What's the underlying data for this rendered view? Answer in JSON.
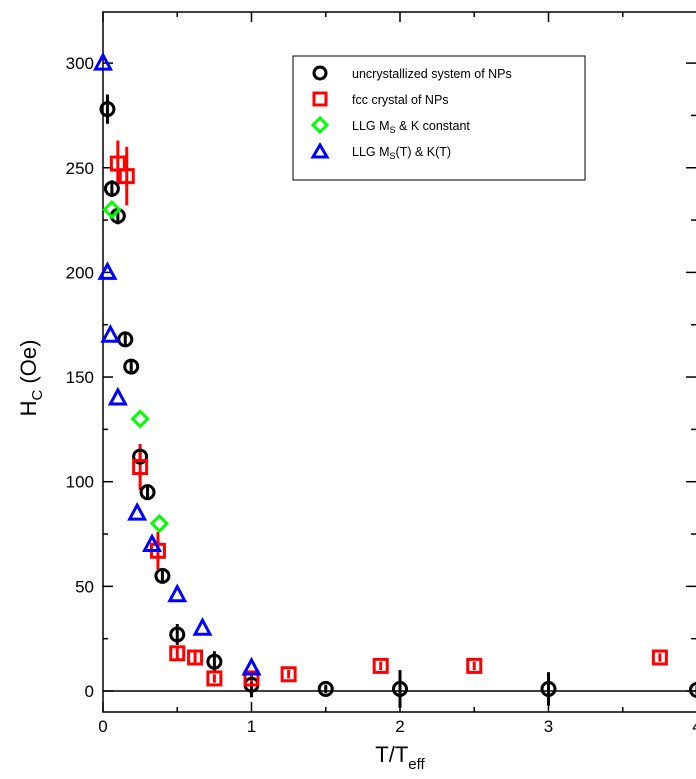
{
  "chart_data": {
    "type": "scatter",
    "title": "",
    "xlabel": {
      "main": "T/T",
      "sub": "eff"
    },
    "ylabel": {
      "main": "H",
      "sub": "C",
      "rest": " (Oe)"
    },
    "xlim": [
      0,
      4
    ],
    "ylim": [
      -10,
      325
    ],
    "x_ticks": [
      0,
      1,
      2,
      3,
      4
    ],
    "y_ticks": [
      0,
      50,
      100,
      150,
      200,
      250,
      300
    ],
    "x_tick_labels": [
      "0",
      "1",
      "2",
      "3",
      "4"
    ],
    "y_tick_labels": [
      "0",
      "50",
      "100",
      "150",
      "200",
      "250",
      "300"
    ],
    "grid": false,
    "zero_line": true,
    "legend": {
      "position": "top-right",
      "entries": [
        {
          "text": "uncrystallized system of NPs"
        },
        {
          "text": "fcc crystal of NPs"
        },
        {
          "main": "LLG M",
          "sub": "S",
          "rest": " & K constant"
        },
        {
          "main": "LLG M",
          "sub": "S",
          "rest": "(T) & K(T)"
        }
      ]
    },
    "series": [
      {
        "name": "uncrystallized system of NPs",
        "marker": "circle",
        "color": "#000000",
        "points": [
          {
            "x": 0.03,
            "y": 278,
            "err": 7
          },
          {
            "x": 0.06,
            "y": 240,
            "err": 4
          },
          {
            "x": 0.1,
            "y": 227,
            "err": 4
          },
          {
            "x": 0.15,
            "y": 168,
            "err": 3
          },
          {
            "x": 0.19,
            "y": 155,
            "err": 3
          },
          {
            "x": 0.25,
            "y": 112,
            "err": 3
          },
          {
            "x": 0.3,
            "y": 95,
            "err": 3
          },
          {
            "x": 0.4,
            "y": 55,
            "err": 3
          },
          {
            "x": 0.5,
            "y": 27,
            "err": 5
          },
          {
            "x": 0.75,
            "y": 14,
            "err": 5
          },
          {
            "x": 1.0,
            "y": 3,
            "err": 6
          },
          {
            "x": 1.5,
            "y": 1,
            "err": 2
          },
          {
            "x": 2.0,
            "y": 1,
            "err": 9
          },
          {
            "x": 3.0,
            "y": 1,
            "err": 8
          },
          {
            "x": 4.0,
            "y": 0.5,
            "err": 2
          }
        ]
      },
      {
        "name": "fcc crystal of NPs",
        "marker": "square",
        "color": "#ff0000",
        "points": [
          {
            "x": 0.1,
            "y": 252,
            "err": 11
          },
          {
            "x": 0.16,
            "y": 246,
            "err": 14
          },
          {
            "x": 0.25,
            "y": 107,
            "err": 11
          },
          {
            "x": 0.37,
            "y": 67,
            "err": 9
          },
          {
            "x": 0.5,
            "y": 18,
            "err": 3
          },
          {
            "x": 0.62,
            "y": 16,
            "err": 3
          },
          {
            "x": 0.75,
            "y": 6,
            "err": 2
          },
          {
            "x": 1.0,
            "y": 6,
            "err": 2
          },
          {
            "x": 1.25,
            "y": 8,
            "err": 2
          },
          {
            "x": 1.87,
            "y": 12,
            "err": 2
          },
          {
            "x": 2.5,
            "y": 12,
            "err": 2
          },
          {
            "x": 3.75,
            "y": 16,
            "err": 2
          }
        ]
      },
      {
        "name": "LLG Ms & K constant",
        "marker": "diamond",
        "color": "#00ff00",
        "points": [
          {
            "x": 0.06,
            "y": 230
          },
          {
            "x": 0.25,
            "y": 130
          },
          {
            "x": 0.38,
            "y": 80
          }
        ]
      },
      {
        "name": "LLG Ms(T) & K(T)",
        "marker": "triangle",
        "color": "#0000ff",
        "points": [
          {
            "x": 0.0,
            "y": 300
          },
          {
            "x": 0.03,
            "y": 200
          },
          {
            "x": 0.05,
            "y": 170
          },
          {
            "x": 0.1,
            "y": 140
          },
          {
            "x": 0.23,
            "y": 85
          },
          {
            "x": 0.33,
            "y": 70
          },
          {
            "x": 0.5,
            "y": 46
          },
          {
            "x": 0.67,
            "y": 30
          },
          {
            "x": 1.0,
            "y": 11
          }
        ]
      }
    ]
  }
}
